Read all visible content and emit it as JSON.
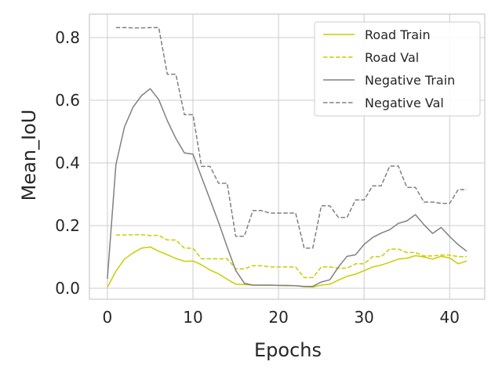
{
  "chart_data": {
    "type": "line",
    "title": "",
    "xlabel": "Epochs",
    "ylabel": "Mean_IoU",
    "xlim": [
      -2.1,
      44.1
    ],
    "ylim": [
      -0.035,
      0.875
    ],
    "xticks": [
      0,
      10,
      20,
      30,
      40
    ],
    "yticks": [
      0.0,
      0.2,
      0.4,
      0.6,
      0.8
    ],
    "xtick_labels": [
      "0",
      "10",
      "20",
      "30",
      "40"
    ],
    "ytick_labels": [
      "0.0",
      "0.2",
      "0.4",
      "0.6",
      "0.8"
    ],
    "grid": true,
    "legend_position": "top-right",
    "series": [
      {
        "name": "Road Train",
        "color": "#cccc00",
        "dash": "solid",
        "x": [
          0,
          1,
          2,
          3,
          4,
          5,
          6,
          7,
          8,
          9,
          10,
          11,
          12,
          13,
          14,
          15,
          16,
          17,
          18,
          19,
          20,
          21,
          22,
          23,
          24,
          25,
          26,
          27,
          28,
          29,
          30,
          31,
          32,
          33,
          34,
          35,
          36,
          37,
          38,
          39,
          40,
          41,
          42
        ],
        "values": [
          0.003,
          0.055,
          0.093,
          0.113,
          0.128,
          0.132,
          0.118,
          0.107,
          0.095,
          0.086,
          0.087,
          0.075,
          0.058,
          0.046,
          0.029,
          0.013,
          0.012,
          0.01,
          0.01,
          0.01,
          0.009,
          0.008,
          0.008,
          0.005,
          0.004,
          0.01,
          0.013,
          0.026,
          0.038,
          0.045,
          0.056,
          0.068,
          0.074,
          0.083,
          0.093,
          0.096,
          0.104,
          0.1,
          0.093,
          0.102,
          0.097,
          0.078,
          0.087
        ]
      },
      {
        "name": "Road Val",
        "color": "#cccc00",
        "dash": "dashed",
        "x": [
          1,
          2,
          3,
          4,
          5,
          6,
          7,
          8,
          9,
          10,
          11,
          12,
          13,
          14,
          15,
          16,
          17,
          18,
          19,
          20,
          21,
          22,
          23,
          24,
          25,
          26,
          27,
          28,
          29,
          30,
          31,
          32,
          33,
          34,
          35,
          36,
          37,
          38,
          39,
          40,
          41,
          42
        ],
        "values": [
          0.17,
          0.17,
          0.171,
          0.171,
          0.168,
          0.169,
          0.154,
          0.154,
          0.128,
          0.128,
          0.094,
          0.094,
          0.094,
          0.094,
          0.062,
          0.062,
          0.072,
          0.072,
          0.068,
          0.068,
          0.068,
          0.068,
          0.034,
          0.034,
          0.068,
          0.068,
          0.064,
          0.064,
          0.078,
          0.078,
          0.101,
          0.101,
          0.125,
          0.125,
          0.114,
          0.114,
          0.103,
          0.103,
          0.106,
          0.106,
          0.101,
          0.101
        ]
      },
      {
        "name": "Negative Train",
        "color": "#808080",
        "dash": "solid",
        "x": [
          0,
          1,
          2,
          3,
          4,
          5,
          6,
          7,
          8,
          9,
          10,
          11,
          12,
          13,
          14,
          15,
          16,
          17,
          18,
          19,
          20,
          21,
          22,
          23,
          24,
          25,
          26,
          27,
          28,
          29,
          30,
          31,
          32,
          33,
          34,
          35,
          36,
          37,
          38,
          39,
          40,
          41,
          42
        ],
        "values": [
          0.03,
          0.395,
          0.515,
          0.578,
          0.615,
          0.637,
          0.602,
          0.535,
          0.478,
          0.432,
          0.428,
          0.355,
          0.283,
          0.21,
          0.132,
          0.057,
          0.016,
          0.01,
          0.01,
          0.01,
          0.009,
          0.009,
          0.008,
          0.006,
          0.006,
          0.02,
          0.027,
          0.068,
          0.102,
          0.107,
          0.14,
          0.162,
          0.176,
          0.187,
          0.207,
          0.215,
          0.235,
          0.203,
          0.175,
          0.194,
          0.165,
          0.139,
          0.118
        ]
      },
      {
        "name": "Negative Val",
        "color": "#808080",
        "dash": "dashed",
        "x": [
          1,
          2,
          3,
          4,
          5,
          6,
          7,
          8,
          9,
          10,
          11,
          12,
          13,
          14,
          15,
          16,
          17,
          18,
          19,
          20,
          21,
          22,
          23,
          24,
          25,
          26,
          27,
          28,
          29,
          30,
          31,
          32,
          33,
          34,
          35,
          36,
          37,
          38,
          39,
          40,
          41,
          42
        ],
        "values": [
          0.832,
          0.832,
          0.831,
          0.831,
          0.832,
          0.832,
          0.683,
          0.683,
          0.554,
          0.554,
          0.389,
          0.389,
          0.335,
          0.335,
          0.166,
          0.166,
          0.248,
          0.248,
          0.24,
          0.24,
          0.24,
          0.24,
          0.128,
          0.128,
          0.263,
          0.263,
          0.226,
          0.226,
          0.282,
          0.282,
          0.327,
          0.327,
          0.39,
          0.39,
          0.322,
          0.322,
          0.275,
          0.275,
          0.271,
          0.271,
          0.315,
          0.315
        ]
      }
    ]
  }
}
